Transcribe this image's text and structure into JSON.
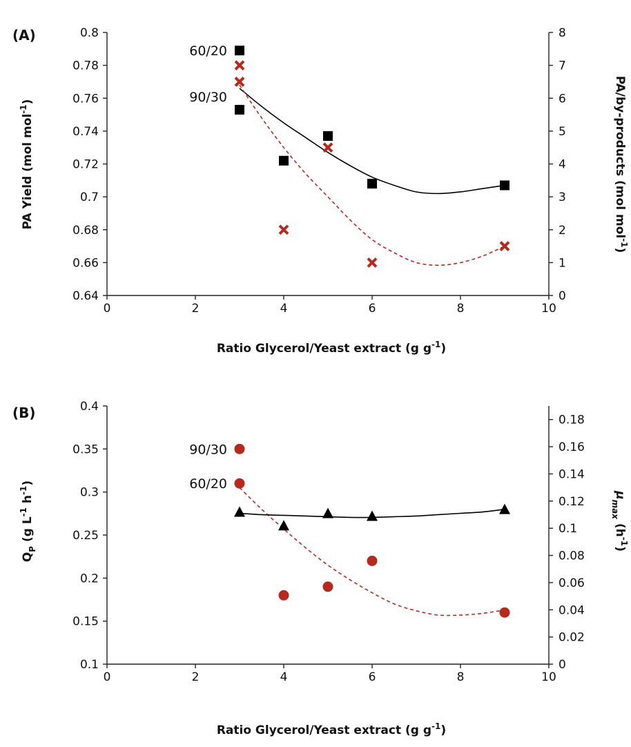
{
  "chart_data": [
    {
      "type": "scatter",
      "panel_label": "(A)",
      "xlabel": "Ratio Glycerol/Yeast extract (g g",
      "xlabel_sup": "-1",
      "xlabel_end": ")",
      "xlim": [
        0,
        10
      ],
      "x_ticks": [
        "0",
        "2",
        "4",
        "6",
        "8",
        "10"
      ],
      "ylabel_left": "PA Yield (mol mol",
      "ylabel_left_sup": "-1",
      "ylabel_left_end": ")",
      "ylim_left": [
        0.64,
        0.8
      ],
      "y_ticks_left": [
        "0.64",
        "0.66",
        "0.68",
        "0.7",
        "0.72",
        "0.74",
        "0.76",
        "0.78",
        "0.8"
      ],
      "ylabel_right": "PA/by-products (mol mol",
      "ylabel_right_sup": "-1",
      "ylabel_right_end": ")",
      "ylim_right": [
        0,
        8
      ],
      "y_ticks_right": [
        "0",
        "1",
        "2",
        "3",
        "4",
        "5",
        "6",
        "7",
        "8"
      ],
      "annotations": [
        {
          "text": "60/20",
          "x": 3,
          "y": 0.789,
          "axis": "left"
        },
        {
          "text": "90/30",
          "x": 3,
          "y": 0.761,
          "axis": "left"
        }
      ],
      "series": [
        {
          "axis": "left",
          "marker": "square",
          "color": "#000000",
          "x": [
            3,
            3,
            4,
            5,
            6,
            9
          ],
          "y": [
            0.789,
            0.753,
            0.722,
            0.737,
            0.708,
            0.707
          ],
          "trend": {
            "style": "solid",
            "color": "#000000",
            "x": [
              3,
              3.5,
              4,
              4.5,
              5,
              5.5,
              6,
              6.5,
              7,
              7.5,
              8,
              8.5,
              9
            ],
            "y": [
              0.766,
              0.755,
              0.745,
              0.736,
              0.727,
              0.719,
              0.712,
              0.707,
              0.703,
              0.702,
              0.703,
              0.705,
              0.707
            ]
          }
        },
        {
          "axis": "right",
          "marker": "x",
          "color": "#b52a1d",
          "x": [
            3,
            3,
            4,
            5,
            6,
            9
          ],
          "y": [
            7.0,
            6.5,
            2.0,
            4.5,
            1.0,
            1.5
          ],
          "trend": {
            "style": "dashed",
            "color": "#b52a1d",
            "x": [
              3,
              3.5,
              4,
              4.5,
              5,
              5.5,
              6,
              6.5,
              7,
              7.5,
              8,
              8.5,
              9
            ],
            "y": [
              6.4,
              5.4,
              4.5,
              3.7,
              3.0,
              2.3,
              1.7,
              1.3,
              1.0,
              0.92,
              1.0,
              1.2,
              1.5
            ]
          }
        }
      ]
    },
    {
      "type": "scatter",
      "panel_label": "(B)",
      "xlabel": "Ratio Glycerol/Yeast extract (g g",
      "xlabel_sup": "-1",
      "xlabel_end": ")",
      "xlim": [
        0,
        10
      ],
      "x_ticks": [
        "0",
        "2",
        "4",
        "6",
        "8",
        "10"
      ],
      "ylabel_left": "Q",
      "ylabel_left_sub": "P",
      "ylabel_left_mid": " (g L",
      "ylabel_left_sup": "-1",
      "ylabel_left_mid2": " h",
      "ylabel_left_sup2": "-1",
      "ylabel_left_end": ")",
      "ylim_left": [
        0.1,
        0.4
      ],
      "y_ticks_left": [
        "0.1",
        "0.15",
        "0.2",
        "0.25",
        "0.3",
        "0.35",
        "0.4"
      ],
      "ylabel_right": "μ",
      "ylabel_right_sub": "max",
      "ylabel_right_mid": " (h",
      "ylabel_right_sup": "-1",
      "ylabel_right_end": ")",
      "ylim_right": [
        0,
        0.19
      ],
      "y_ticks_right": [
        "0",
        "0.02",
        "0.04",
        "0.06",
        "0.08",
        "0.1",
        "0.12",
        "0.14",
        "0.16",
        "0.18"
      ],
      "annotations": [
        {
          "text": "90/30",
          "x": 3,
          "y": 0.35,
          "axis": "left"
        },
        {
          "text": "60/20",
          "x": 3,
          "y": 0.31,
          "axis": "left"
        }
      ],
      "series": [
        {
          "axis": "left",
          "marker": "circle",
          "color": "#b52a1d",
          "x": [
            3,
            3,
            4,
            5,
            6,
            9
          ],
          "y": [
            0.35,
            0.31,
            0.18,
            0.19,
            0.22,
            0.16
          ],
          "trend": {
            "style": "dashed",
            "color": "#b52a1d",
            "x": [
              3,
              3.5,
              4,
              4.5,
              5,
              5.5,
              6,
              6.5,
              7,
              7.5,
              8,
              8.5,
              9
            ],
            "y": [
              0.305,
              0.28,
              0.257,
              0.235,
              0.215,
              0.198,
              0.183,
              0.17,
              0.162,
              0.157,
              0.157,
              0.159,
              0.163
            ]
          }
        },
        {
          "axis": "right",
          "marker": "triangle",
          "color": "#000000",
          "x": [
            3,
            4,
            5,
            6,
            9
          ],
          "y": [
            0.112,
            0.102,
            0.111,
            0.109,
            0.114
          ],
          "trend": {
            "style": "solid",
            "color": "#000000",
            "x": [
              3,
              3.5,
              4,
              4.5,
              5,
              5.5,
              6,
              6.5,
              7,
              7.5,
              8,
              8.5,
              9
            ],
            "y": [
              0.111,
              0.11,
              0.1095,
              0.109,
              0.1085,
              0.108,
              0.108,
              0.1085,
              0.109,
              0.11,
              0.111,
              0.112,
              0.114
            ]
          }
        }
      ]
    }
  ]
}
